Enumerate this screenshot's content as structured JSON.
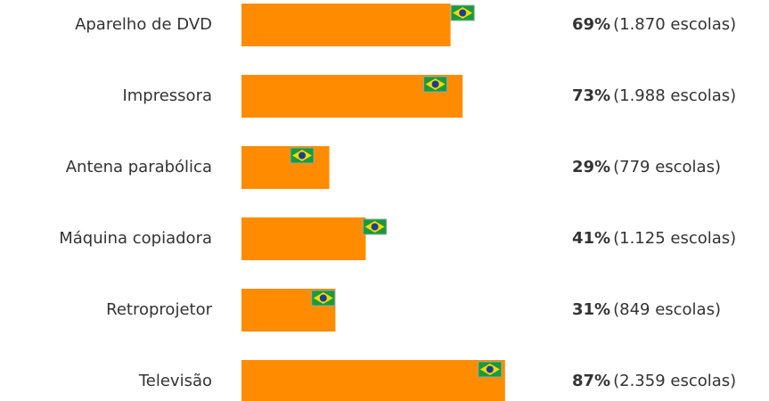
{
  "chart_data": {
    "type": "bar",
    "categories": [
      "Aparelho de DVD",
      "Impressora",
      "Antena parabólica",
      "Máquina copiadora",
      "Retroprojetor",
      "Televisão"
    ],
    "values": [
      69,
      73,
      29,
      41,
      31,
      87
    ],
    "value_labels": [
      "69%",
      "73%",
      "29%",
      "41%",
      "31%",
      "87%"
    ],
    "counts": [
      1870,
      1988,
      779,
      1125,
      849,
      2359
    ],
    "count_labels": [
      "(1.870 escolas)",
      "(1.988 escolas)",
      "(779 escolas)",
      "(1.125 escolas)",
      "(849 escolas)",
      "(2.359 escolas)"
    ],
    "markers": [
      73,
      64,
      20,
      44,
      27,
      82
    ],
    "color": "#ff8c00",
    "xlim": [
      0,
      100
    ]
  }
}
